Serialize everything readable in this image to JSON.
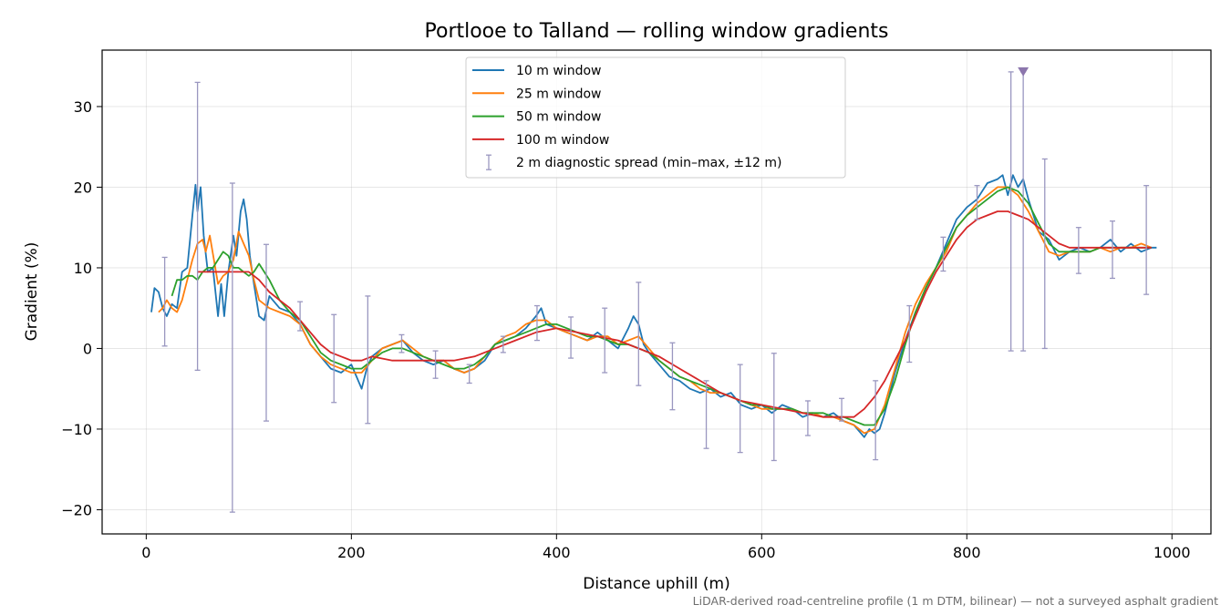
{
  "chart_data": {
    "type": "line",
    "title": "Portlooe to Talland — rolling window gradients",
    "xlabel": "Distance uphill (m)",
    "ylabel": "Gradient (%)",
    "xlim": [
      -43,
      1038
    ],
    "ylim": [
      -23,
      37
    ],
    "xticks": [
      0,
      200,
      400,
      600,
      800,
      1000
    ],
    "yticks": [
      -20,
      -10,
      0,
      10,
      20,
      30
    ],
    "grid": true,
    "legend_position": "top-center",
    "footnote": "LiDAR-derived road-centreline profile (1 m DTM, bilinear) — not a surveyed asphalt gradient",
    "series": [
      {
        "name": "10 m window",
        "color": "#1f77b4",
        "x": [
          5,
          8,
          12,
          16,
          20,
          25,
          30,
          35,
          40,
          45,
          48,
          50,
          53,
          56,
          60,
          65,
          70,
          73,
          76,
          80,
          85,
          88,
          92,
          95,
          98,
          101,
          105,
          110,
          115,
          120,
          130,
          140,
          150,
          160,
          170,
          180,
          190,
          200,
          205,
          210,
          215,
          220,
          230,
          240,
          250,
          260,
          270,
          280,
          290,
          300,
          310,
          320,
          330,
          340,
          350,
          360,
          370,
          380,
          385,
          390,
          400,
          410,
          420,
          430,
          440,
          450,
          460,
          470,
          475,
          480,
          485,
          490,
          500,
          510,
          520,
          530,
          540,
          550,
          560,
          570,
          580,
          590,
          600,
          610,
          620,
          630,
          640,
          650,
          660,
          670,
          680,
          690,
          700,
          705,
          710,
          715,
          720,
          730,
          740,
          750,
          760,
          770,
          780,
          790,
          800,
          810,
          820,
          830,
          835,
          840,
          845,
          850,
          855,
          860,
          870,
          880,
          890,
          900,
          910,
          920,
          930,
          940,
          950,
          960,
          970,
          980,
          985
        ],
        "y": [
          4.5,
          7.5,
          7.0,
          5.0,
          4.0,
          5.5,
          5.0,
          9.5,
          10.0,
          16.5,
          20.3,
          17.0,
          20.0,
          14.0,
          9.5,
          10.0,
          4.0,
          8.0,
          4.0,
          9.5,
          14.0,
          11.5,
          17.0,
          18.5,
          16.0,
          11.5,
          8.0,
          4.0,
          3.5,
          6.5,
          5.0,
          4.5,
          3.0,
          0.5,
          -1.0,
          -2.5,
          -3.0,
          -2.0,
          -3.5,
          -5.0,
          -2.5,
          -1.0,
          0.0,
          0.5,
          1.0,
          -0.5,
          -1.5,
          -2.0,
          -1.5,
          -2.5,
          -3.0,
          -2.5,
          -1.5,
          0.5,
          1.0,
          1.5,
          2.5,
          4.0,
          5.0,
          3.0,
          2.5,
          2.0,
          1.5,
          1.0,
          2.0,
          1.0,
          0.0,
          2.5,
          4.0,
          3.0,
          0.5,
          -0.5,
          -2.0,
          -3.5,
          -4.0,
          -5.0,
          -5.5,
          -5.0,
          -6.0,
          -5.5,
          -7.0,
          -7.5,
          -7.0,
          -8.0,
          -7.0,
          -7.5,
          -8.5,
          -8.0,
          -8.5,
          -8.0,
          -9.0,
          -9.5,
          -11.0,
          -10.0,
          -10.5,
          -10.0,
          -8.0,
          -3.0,
          1.0,
          4.5,
          7.5,
          10.0,
          13.0,
          16.0,
          17.5,
          18.5,
          20.5,
          21.0,
          21.5,
          19.0,
          21.5,
          20.0,
          21.0,
          18.5,
          14.5,
          13.5,
          11.0,
          12.0,
          12.5,
          12.0,
          12.5,
          13.5,
          12.0,
          13.0,
          12.0,
          12.5,
          12.5
        ]
      },
      {
        "name": "25 m window",
        "color": "#ff7f0e",
        "x": [
          12,
          16,
          20,
          25,
          30,
          35,
          40,
          45,
          50,
          55,
          58,
          62,
          66,
          70,
          75,
          80,
          85,
          90,
          95,
          100,
          105,
          110,
          120,
          130,
          140,
          150,
          160,
          170,
          180,
          190,
          200,
          210,
          220,
          230,
          240,
          250,
          260,
          270,
          280,
          290,
          300,
          310,
          320,
          330,
          340,
          350,
          360,
          370,
          380,
          390,
          400,
          410,
          420,
          430,
          440,
          450,
          460,
          470,
          480,
          490,
          500,
          510,
          520,
          530,
          540,
          550,
          560,
          570,
          580,
          590,
          600,
          610,
          620,
          630,
          640,
          650,
          660,
          670,
          680,
          690,
          700,
          710,
          720,
          730,
          740,
          750,
          760,
          770,
          780,
          790,
          800,
          810,
          820,
          830,
          840,
          850,
          860,
          870,
          880,
          890,
          900,
          910,
          920,
          930,
          940,
          950,
          960,
          970,
          980
        ],
        "y": [
          4.5,
          5.0,
          6.0,
          5.0,
          4.5,
          6.0,
          8.5,
          11.0,
          13.0,
          13.5,
          12.0,
          14.0,
          11.0,
          8.0,
          9.0,
          9.5,
          11.0,
          14.5,
          13.0,
          11.5,
          8.5,
          6.0,
          5.0,
          4.5,
          4.0,
          3.0,
          0.5,
          -1.0,
          -2.0,
          -2.5,
          -3.0,
          -3.0,
          -1.5,
          0.0,
          0.5,
          1.0,
          0.0,
          -1.0,
          -1.5,
          -1.5,
          -2.5,
          -3.0,
          -2.5,
          -1.0,
          0.5,
          1.5,
          2.0,
          3.0,
          3.5,
          3.5,
          2.5,
          2.0,
          1.5,
          1.0,
          1.5,
          1.5,
          0.5,
          1.0,
          1.5,
          0.0,
          -1.5,
          -2.5,
          -3.5,
          -4.0,
          -5.0,
          -5.5,
          -5.5,
          -6.0,
          -6.5,
          -7.0,
          -7.5,
          -7.5,
          -7.5,
          -7.5,
          -8.0,
          -8.0,
          -8.5,
          -8.5,
          -9.0,
          -9.5,
          -10.5,
          -10.0,
          -7.0,
          -2.5,
          2.0,
          5.5,
          8.0,
          10.0,
          12.0,
          15.0,
          16.5,
          18.0,
          19.0,
          20.0,
          20.0,
          19.0,
          17.0,
          14.5,
          12.0,
          11.5,
          12.0,
          12.0,
          12.0,
          12.5,
          12.0,
          12.5,
          12.5,
          13.0,
          12.5
        ]
      },
      {
        "name": "50 m window",
        "color": "#2ca02c",
        "x": [
          25,
          30,
          35,
          40,
          45,
          50,
          55,
          60,
          65,
          70,
          75,
          80,
          85,
          90,
          95,
          100,
          105,
          110,
          120,
          130,
          140,
          150,
          160,
          170,
          180,
          190,
          200,
          210,
          220,
          230,
          240,
          250,
          260,
          270,
          280,
          290,
          300,
          310,
          320,
          330,
          340,
          350,
          360,
          370,
          380,
          390,
          400,
          410,
          420,
          430,
          440,
          450,
          460,
          470,
          480,
          490,
          500,
          510,
          520,
          530,
          540,
          550,
          560,
          570,
          580,
          590,
          600,
          610,
          620,
          630,
          640,
          650,
          660,
          670,
          680,
          690,
          700,
          710,
          720,
          730,
          740,
          750,
          760,
          770,
          780,
          790,
          800,
          810,
          820,
          830,
          840,
          850,
          860,
          870,
          880,
          890,
          900,
          910,
          920,
          930,
          940,
          950,
          960,
          970,
          980
        ],
        "y": [
          6.5,
          8.5,
          8.5,
          9.0,
          9.0,
          8.5,
          9.5,
          10.0,
          10.0,
          11.0,
          12.0,
          11.5,
          10.0,
          10.0,
          9.5,
          9.0,
          9.5,
          10.5,
          8.5,
          6.0,
          4.5,
          3.5,
          1.5,
          -0.5,
          -1.5,
          -2.0,
          -2.5,
          -2.5,
          -1.5,
          -0.5,
          0.0,
          0.0,
          -0.5,
          -1.0,
          -1.5,
          -2.0,
          -2.5,
          -2.5,
          -2.0,
          -1.0,
          0.5,
          1.0,
          1.5,
          2.0,
          2.5,
          3.0,
          3.0,
          2.5,
          2.0,
          1.5,
          1.5,
          1.0,
          0.5,
          0.5,
          0.0,
          -0.5,
          -1.5,
          -2.5,
          -3.5,
          -4.0,
          -4.5,
          -5.0,
          -5.5,
          -6.0,
          -6.5,
          -7.0,
          -7.0,
          -7.5,
          -7.5,
          -7.5,
          -8.0,
          -8.0,
          -8.0,
          -8.5,
          -8.5,
          -9.0,
          -9.5,
          -9.5,
          -7.5,
          -4.0,
          0.5,
          4.5,
          7.5,
          10.0,
          12.5,
          15.0,
          16.5,
          17.5,
          18.5,
          19.5,
          20.0,
          19.5,
          18.0,
          15.5,
          13.0,
          12.0,
          12.0,
          12.0,
          12.0,
          12.5,
          12.5,
          12.5,
          12.5,
          12.5,
          12.5
        ]
      },
      {
        "name": "100 m window",
        "color": "#d62728",
        "x": [
          50,
          60,
          70,
          80,
          90,
          100,
          110,
          120,
          130,
          140,
          150,
          160,
          170,
          180,
          190,
          200,
          210,
          220,
          240,
          260,
          280,
          300,
          320,
          340,
          360,
          380,
          400,
          420,
          440,
          460,
          480,
          500,
          520,
          540,
          560,
          580,
          600,
          620,
          640,
          660,
          680,
          690,
          700,
          710,
          720,
          730,
          740,
          750,
          760,
          770,
          780,
          790,
          800,
          810,
          820,
          830,
          840,
          850,
          860,
          870,
          880,
          890,
          900,
          910,
          920,
          930,
          940,
          950,
          960,
          970,
          980
        ],
        "y": [
          9.5,
          9.5,
          9.5,
          9.5,
          9.5,
          9.5,
          8.5,
          7.0,
          6.0,
          5.0,
          3.5,
          2.0,
          0.5,
          -0.5,
          -1.0,
          -1.5,
          -1.5,
          -1.0,
          -1.5,
          -1.5,
          -1.5,
          -1.5,
          -1.0,
          0.0,
          1.0,
          2.0,
          2.5,
          2.0,
          1.5,
          1.0,
          0.0,
          -1.0,
          -2.5,
          -4.0,
          -5.5,
          -6.5,
          -7.0,
          -7.5,
          -8.0,
          -8.5,
          -8.5,
          -8.5,
          -7.5,
          -6.0,
          -4.0,
          -1.5,
          1.0,
          4.0,
          7.0,
          9.5,
          11.5,
          13.5,
          15.0,
          16.0,
          16.5,
          17.0,
          17.0,
          16.5,
          16.0,
          15.0,
          14.0,
          13.0,
          12.5,
          12.5,
          12.5,
          12.5,
          12.5,
          12.5,
          12.5,
          12.5,
          12.5
        ]
      }
    ],
    "error_bars": {
      "name": "2 m diagnostic spread (min–max, ±12 m)",
      "color": "#9a97c0",
      "x": [
        18,
        50,
        84,
        117,
        150,
        183,
        216,
        249,
        282,
        315,
        348,
        381,
        414,
        447,
        480,
        513,
        546,
        579,
        612,
        645,
        678,
        711,
        744,
        777,
        810,
        843,
        855,
        876,
        909,
        942,
        975
      ],
      "low": [
        0.3,
        -2.7,
        -20.3,
        -9.0,
        2.2,
        -6.7,
        -9.3,
        -0.5,
        -3.7,
        -4.3,
        -0.5,
        1.0,
        -1.2,
        -3.0,
        -4.6,
        -7.6,
        -12.4,
        -12.9,
        -13.9,
        -10.8,
        -9.0,
        -13.8,
        -1.7,
        9.6,
        16.0,
        -0.3,
        -0.3,
        0.0,
        9.3,
        8.7,
        6.7
      ],
      "high": [
        11.3,
        33.0,
        20.5,
        12.9,
        5.8,
        4.2,
        6.5,
        1.7,
        -0.3,
        -2.0,
        1.5,
        5.3,
        3.9,
        5.0,
        8.2,
        0.7,
        -4.0,
        -2.0,
        -0.6,
        -6.5,
        -6.2,
        -4.0,
        5.3,
        13.8,
        20.2,
        34.3,
        34.3,
        23.5,
        15.0,
        15.8,
        20.2
      ]
    },
    "marker": {
      "shape": "triangle-down",
      "x": 855,
      "y": 34.3,
      "color": "#8c76ad"
    }
  }
}
